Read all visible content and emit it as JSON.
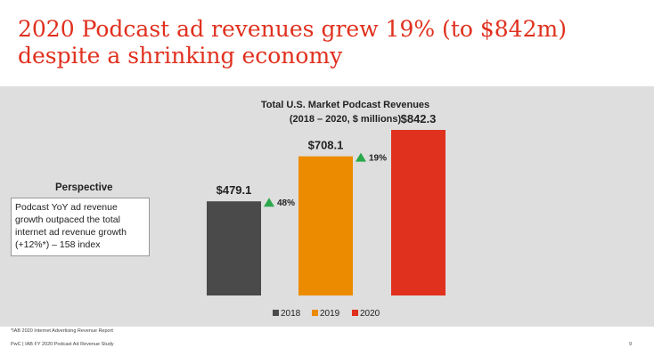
{
  "page": {
    "title": "2020 Podcast ad revenues grew 19% (to $842m) despite a shrinking economy",
    "perspective_label": "Perspective",
    "perspective_text": "Podcast YoY ad revenue growth outpaced the total internet ad revenue growth (+12%*) – 158 index",
    "footnote": "*IAB 2020 Internet Advertising Revenue Report",
    "footer": "PwC  |  IAB FY 2020 Podcast Ad Revenue Study",
    "page_number": "9"
  },
  "chart_data": {
    "type": "bar",
    "title": "Total U.S. Market Podcast Revenues",
    "subtitle": "(2018 – 2020, $ millions)",
    "categories": [
      "2018",
      "2019",
      "2020"
    ],
    "values": [
      479.1,
      708.1,
      842.3
    ],
    "value_labels": [
      "$479.1",
      "$708.1",
      "$842.3"
    ],
    "growth_labels": [
      "48%",
      "19%"
    ],
    "colors": [
      "#4a4a4a",
      "#ed8b00",
      "#e0301e"
    ],
    "growth_color": "#2aa84a",
    "legend": [
      "2018",
      "2019",
      "2020"
    ],
    "ylim": [
      0,
      842.3
    ],
    "xlabel": "",
    "ylabel": ""
  }
}
